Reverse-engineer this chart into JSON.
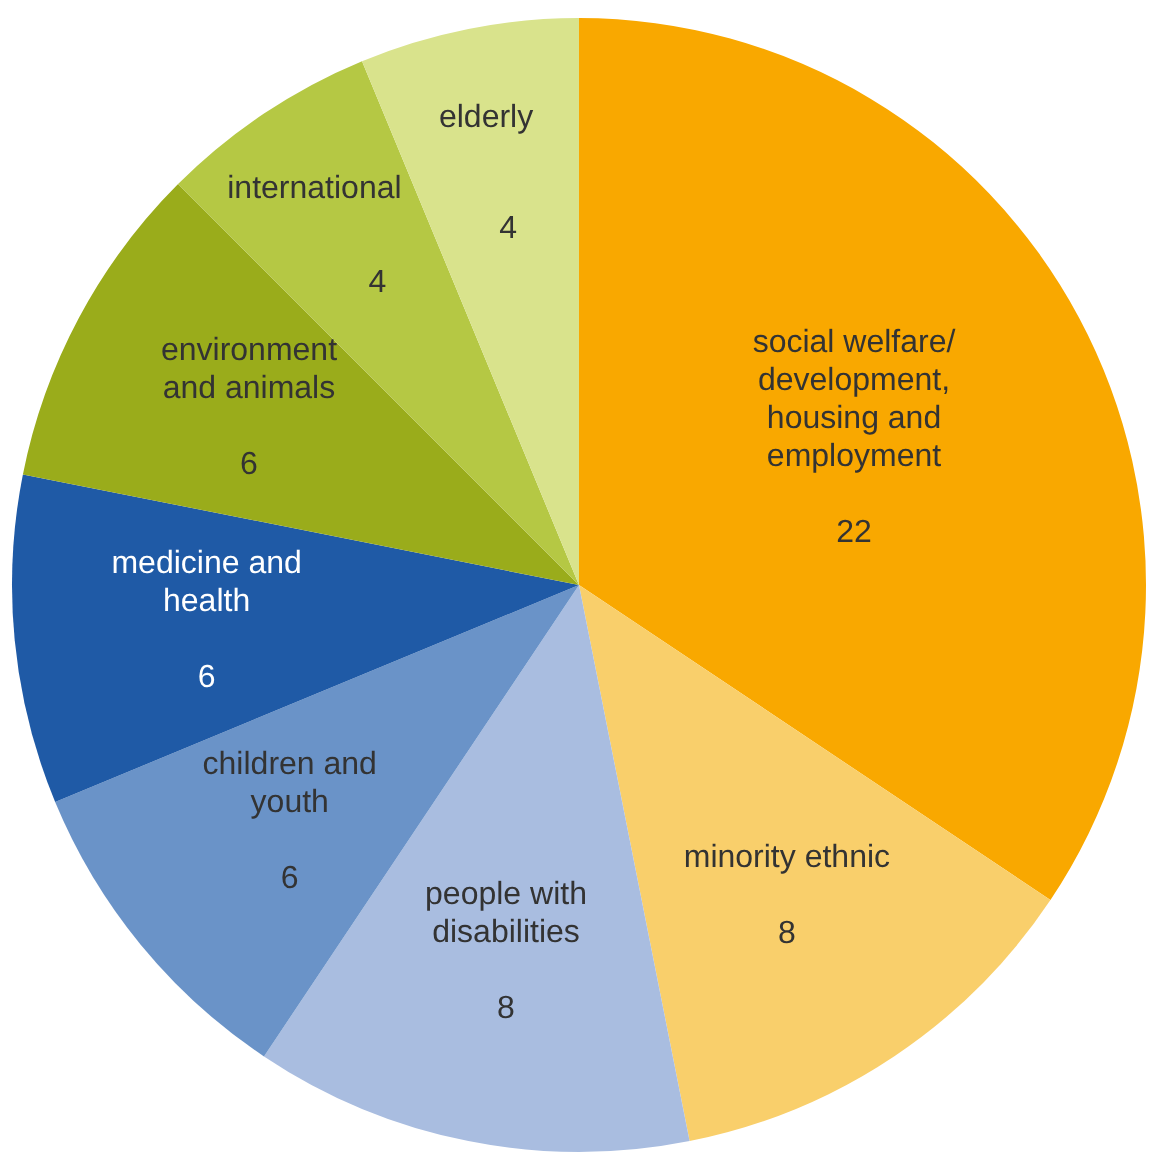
{
  "chart_data": {
    "type": "pie",
    "categories": [
      "social welfare/ development, housing and employment",
      "minority ethnic",
      "people with disabilities",
      "children and youth",
      "medicine and health",
      "environment and animals",
      "international",
      "elderly"
    ],
    "values": [
      22,
      8,
      8,
      6,
      6,
      6,
      4,
      4
    ],
    "colors": [
      "#f9a800",
      "#f9cf6b",
      "#a9bde0",
      "#6a93c8",
      "#1f5aa6",
      "#9aac1b",
      "#b5c844",
      "#d9e38c"
    ],
    "data_labels": true,
    "legend": false
  }
}
